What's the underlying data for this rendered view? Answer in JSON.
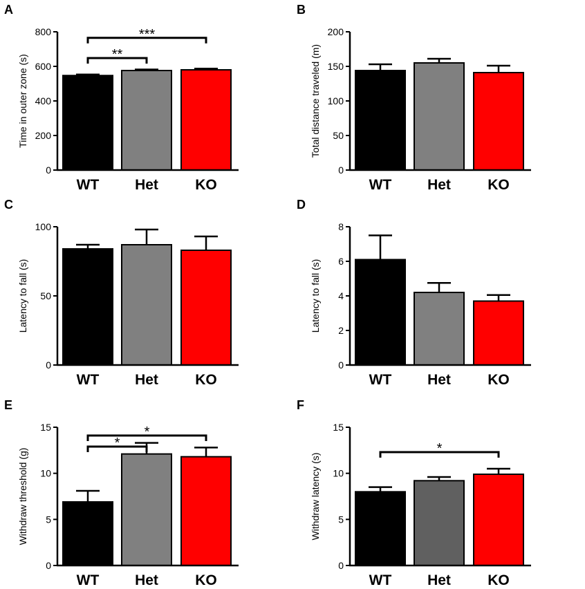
{
  "figure": {
    "background": "#ffffff"
  },
  "chart_data": [
    {
      "panel": "A",
      "type": "bar",
      "categories": [
        "WT",
        "Het",
        "KO"
      ],
      "values": [
        547,
        576,
        580
      ],
      "errors": [
        6,
        6,
        7
      ],
      "colors": [
        "#000000",
        "#808080",
        "#ff0000"
      ],
      "ylabel": "Time in outer zone (s)",
      "ylim": [
        0,
        800
      ],
      "yticks": [
        "0",
        "200",
        "400",
        "600",
        "800"
      ],
      "significance": [
        {
          "from": 0,
          "to": 1,
          "y": 648,
          "text": "**"
        },
        {
          "from": 0,
          "to": 2,
          "y": 765,
          "text": "***"
        }
      ]
    },
    {
      "panel": "B",
      "type": "bar",
      "categories": [
        "WT",
        "Het",
        "KO"
      ],
      "values": [
        144,
        155,
        141
      ],
      "errors": [
        9,
        6,
        10
      ],
      "colors": [
        "#000000",
        "#808080",
        "#ff0000"
      ],
      "ylabel": "Total distance traveled (m)",
      "ylim": [
        0,
        200
      ],
      "yticks": [
        "0",
        "50",
        "100",
        "150",
        "200"
      ],
      "significance": []
    },
    {
      "panel": "C",
      "type": "bar",
      "categories": [
        "WT",
        "Het",
        "KO"
      ],
      "values": [
        84,
        87,
        83
      ],
      "errors": [
        3,
        11,
        10
      ],
      "colors": [
        "#000000",
        "#808080",
        "#ff0000"
      ],
      "ylabel": "Latency to fall (s)",
      "ylim": [
        0,
        100
      ],
      "yticks": [
        "0",
        "50",
        "100"
      ],
      "significance": []
    },
    {
      "panel": "D",
      "type": "bar",
      "categories": [
        "WT",
        "Het",
        "KO"
      ],
      "values": [
        6.1,
        4.2,
        3.7
      ],
      "errors": [
        1.4,
        0.55,
        0.35
      ],
      "colors": [
        "#000000",
        "#808080",
        "#ff0000"
      ],
      "ylabel": "Latency to fall (s)",
      "ylim": [
        0,
        8
      ],
      "yticks": [
        "0",
        "2",
        "4",
        "6",
        "8"
      ],
      "significance": []
    },
    {
      "panel": "E",
      "type": "bar",
      "categories": [
        "WT",
        "Het",
        "KO"
      ],
      "values": [
        6.9,
        12.1,
        11.8
      ],
      "errors": [
        1.2,
        1.2,
        1.0
      ],
      "colors": [
        "#000000",
        "#808080",
        "#ff0000"
      ],
      "ylabel": "Withdraw threshold (g)",
      "ylim": [
        0,
        15
      ],
      "yticks": [
        "0",
        "5",
        "10",
        "15"
      ],
      "significance": [
        {
          "from": 0,
          "to": 1,
          "y": 12.9,
          "text": "*"
        },
        {
          "from": 0,
          "to": 2,
          "y": 14.1,
          "text": "*"
        }
      ]
    },
    {
      "panel": "F",
      "type": "bar",
      "categories": [
        "WT",
        "Het",
        "KO"
      ],
      "values": [
        8.0,
        9.2,
        9.9
      ],
      "errors": [
        0.5,
        0.4,
        0.6
      ],
      "colors": [
        "#000000",
        "#606060",
        "#ff0000"
      ],
      "ylabel": "Withdraw latency (s)",
      "ylim": [
        0,
        15
      ],
      "yticks": [
        "0",
        "5",
        "10",
        "15"
      ],
      "significance": [
        {
          "from": 0,
          "to": 2,
          "y": 12.3,
          "text": "*"
        }
      ]
    }
  ]
}
